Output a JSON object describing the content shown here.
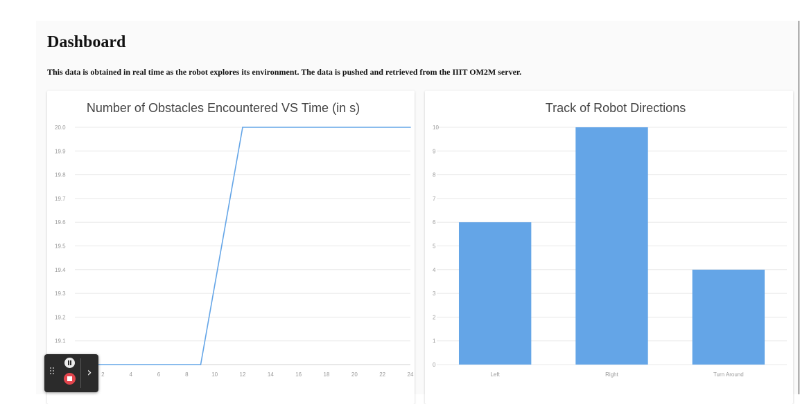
{
  "header": {
    "title": "Dashboard",
    "subtitle": "This data is obtained in real time as the robot explores its environment. The data is pushed and retrieved from the IIIT OM2M server."
  },
  "colors": {
    "series": "#64a5e7",
    "grid": "#e8e8e8",
    "tick": "#999999"
  },
  "chart_data": [
    {
      "type": "line",
      "title": "Number of Obstacles Encountered VS Time (in s)",
      "xlabel": "",
      "ylabel": "",
      "x": [
        0,
        9,
        12,
        24
      ],
      "series": [
        {
          "values": [
            19.0,
            19.0,
            20.0,
            20.0
          ]
        }
      ],
      "xlim": [
        0,
        24
      ],
      "ylim": [
        19.0,
        20.0
      ],
      "x_ticks": [
        "2",
        "4",
        "6",
        "8",
        "10",
        "12",
        "14",
        "16",
        "18",
        "20",
        "22",
        "24"
      ],
      "y_ticks": [
        "19.1",
        "19.2",
        "19.3",
        "19.4",
        "19.5",
        "19.6",
        "19.7",
        "19.8",
        "19.9",
        "20.0"
      ],
      "grid": true
    },
    {
      "type": "bar",
      "title": "Track of Robot Directions",
      "xlabel": "",
      "ylabel": "",
      "categories": [
        "Left",
        "Right",
        "Turn Around"
      ],
      "values": [
        6,
        10,
        4
      ],
      "ylim": [
        0,
        10
      ],
      "y_ticks": [
        "0",
        "1",
        "2",
        "3",
        "4",
        "5",
        "6",
        "7",
        "8",
        "9",
        "10"
      ],
      "grid": true
    }
  ],
  "recorder_widget": {
    "drag_icon": "drag-handle-icon",
    "pause_icon": "pause-icon",
    "stop_icon": "stop-icon",
    "expand_icon": "chevron-right-icon",
    "expand_glyph": "›"
  }
}
